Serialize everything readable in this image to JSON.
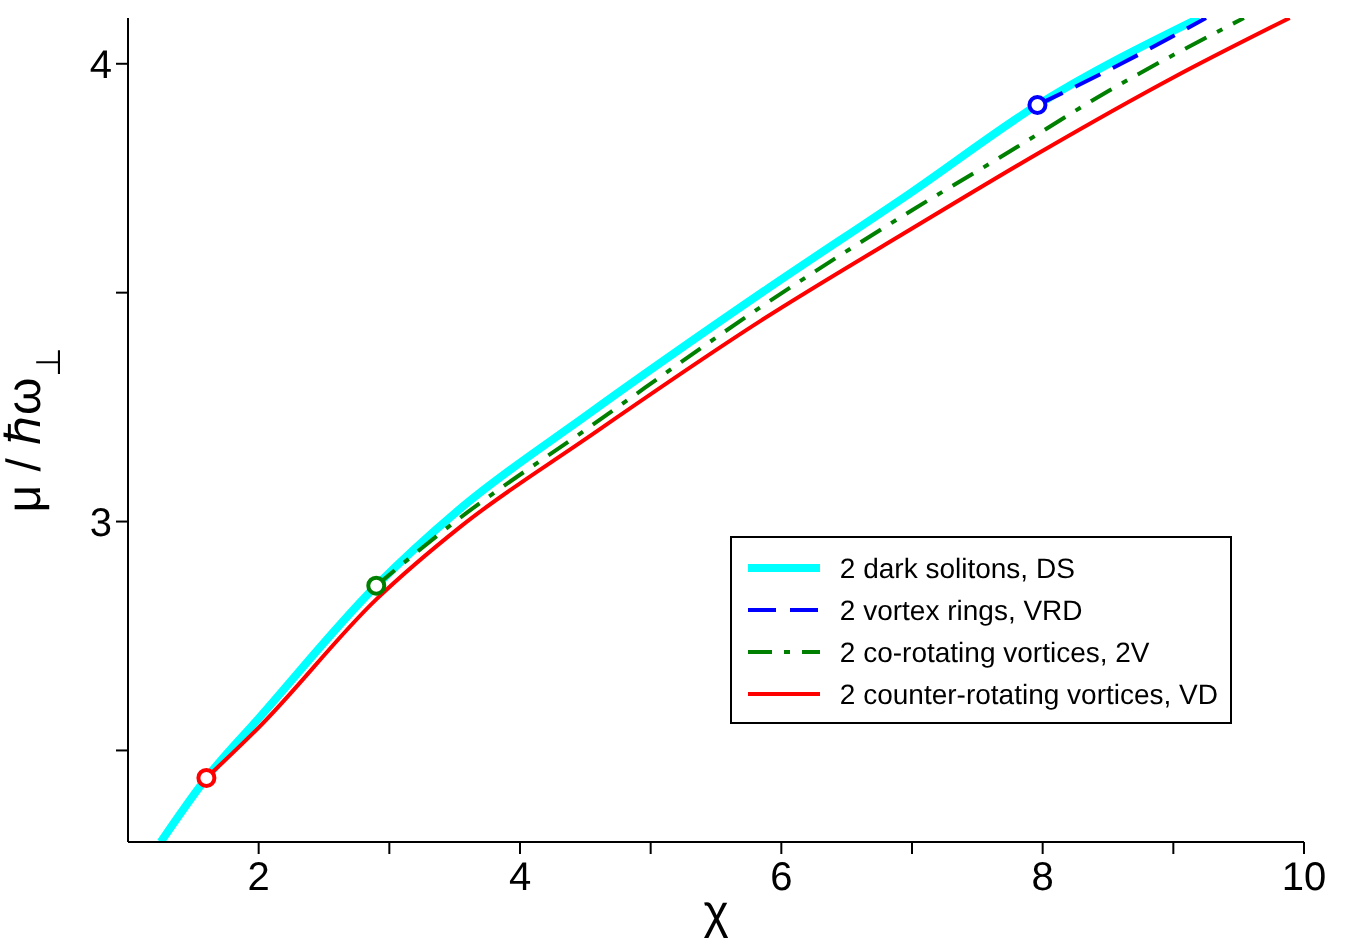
{
  "chart_data": {
    "type": "line",
    "xlabel": "χ",
    "ylabel": "μ / ℏω$_{⊥}$",
    "xlim": [
      1,
      10
    ],
    "xticks": [
      2,
      {
        "value": 3,
        "label": null
      },
      4,
      {
        "value": 5,
        "label": null
      },
      6,
      {
        "value": 7,
        "label": null
      },
      8,
      {
        "value": 9,
        "label": null
      },
      10
    ],
    "ylim": [
      2.3,
      4.1
    ],
    "yticks": [
      {
        "value": 2.5,
        "label": null
      },
      3,
      {
        "value": 3.5,
        "label": null
      },
      4
    ],
    "grid": false,
    "legend": "bottom right",
    "series": [
      {
        "name": "2 dark solitons, DS",
        "color": "#00ffff",
        "line_style": "solid",
        "x": [
          1.25,
          1.6,
          2.0,
          2.9,
          3.55,
          4.5,
          5.85,
          7.0,
          7.96,
          9.2
        ],
        "values": [
          2.3,
          2.44,
          2.57,
          2.86,
          3.03,
          3.23,
          3.5,
          3.72,
          3.91,
          4.1
        ]
      },
      {
        "name": "2 vortex rings, VRD",
        "color": "#0000ff",
        "line_style": "dashed",
        "x": [
          7.96,
          8.6,
          9.25
        ],
        "values": [
          3.91,
          4.0,
          4.1
        ]
      },
      {
        "name": "2 co-rotating vortices, 2V",
        "color": "#008000",
        "line_style": "dashdot",
        "x": [
          2.9,
          3.55,
          4.5,
          5.85,
          7.0,
          7.7,
          8.5,
          9.54
        ],
        "values": [
          2.86,
          3.01,
          3.2,
          3.47,
          3.68,
          3.8,
          3.94,
          4.1
        ]
      },
      {
        "name": "2 counter-rotating vortices, VD",
        "color": "#ff0000",
        "line_style": "solid",
        "x": [
          1.6,
          2.0,
          2.9,
          3.55,
          4.5,
          5.85,
          7.0,
          8.0,
          9.0,
          9.89
        ],
        "values": [
          2.44,
          2.55,
          2.83,
          2.99,
          3.18,
          3.44,
          3.64,
          3.81,
          3.97,
          4.1
        ]
      },
      {
        "type": "scatter",
        "marker": "circle",
        "color": "#0000ff",
        "x": [
          7.96
        ],
        "values": [
          3.91
        ]
      },
      {
        "type": "scatter",
        "marker": "circle",
        "color": "#008000",
        "x": [
          2.9
        ],
        "values": [
          2.86
        ]
      },
      {
        "type": "scatter",
        "marker": "circle",
        "color": "#ff0000",
        "x": [
          1.6
        ],
        "values": [
          2.44
        ]
      }
    ]
  }
}
